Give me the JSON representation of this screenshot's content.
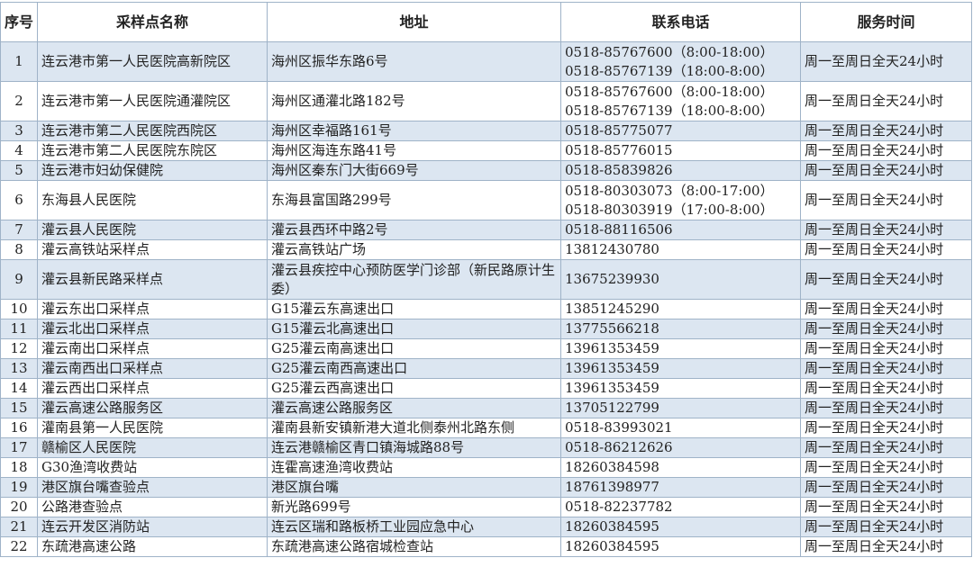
{
  "headers": [
    "序号",
    "采样点名称",
    "地址",
    "联系电话",
    "服务时间"
  ],
  "rows": [
    {
      "no": "1",
      "name": "连云港市第一人民医院高新院区",
      "address": "海州区振华东路6号",
      "phones": [
        "0518-85767600（8:00-18:00）",
        "0518-85767139（18:00-8:00）"
      ],
      "hours": "周一至周日全天24小时"
    },
    {
      "no": "2",
      "name": "连云港市第一人民医院通灌院区",
      "address": "海州区通灌北路182号",
      "phones": [
        "0518-85767600（8:00-18:00）",
        "0518-85767139（18:00-8:00）"
      ],
      "hours": "周一至周日全天24小时"
    },
    {
      "no": "3",
      "name": "连云港市第二人民医院西院区",
      "address": "海州区幸福路161号",
      "phones": [
        "0518-85775077"
      ],
      "hours": "周一至周日全天24小时"
    },
    {
      "no": "4",
      "name": "连云港市第二人民医院东院区",
      "address": "海州区海连东路41号",
      "phones": [
        "0518-85776015"
      ],
      "hours": "周一至周日全天24小时"
    },
    {
      "no": "5",
      "name": "连云港市妇幼保健院",
      "address": "海州区秦东门大街669号",
      "phones": [
        "0518-85839826"
      ],
      "hours": "周一至周日全天24小时"
    },
    {
      "no": "6",
      "name": "东海县人民医院",
      "address": "东海县富国路299号",
      "phones": [
        "0518-80303073（8:00-17:00）",
        "0518-80303919（17:00-8:00）"
      ],
      "hours": "周一至周日全天24小时"
    },
    {
      "no": "7",
      "name": "灌云县人民医院",
      "address": "灌云县西环中路2号",
      "phones": [
        "0518-88116506"
      ],
      "hours": "周一至周日全天24小时"
    },
    {
      "no": "8",
      "name": "灌云高铁站采样点",
      "address": "灌云高铁站广场",
      "phones": [
        "13812430780"
      ],
      "hours": "周一至周日全天24小时"
    },
    {
      "no": "9",
      "name": "灌云县新民路采样点",
      "address": "灌云县疾控中心预防医学门诊部（新民路原计生委）",
      "phones": [
        "13675239930"
      ],
      "hours": "周一至周日全天24小时"
    },
    {
      "no": "10",
      "name": "灌云东出口采样点",
      "address": "G15灌云东高速出口",
      "phones": [
        "13851245290"
      ],
      "hours": "周一至周日全天24小时"
    },
    {
      "no": "11",
      "name": "灌云北出口采样点",
      "address": "G15灌云北高速出口",
      "phones": [
        "13775566218"
      ],
      "hours": "周一至周日全天24小时"
    },
    {
      "no": "12",
      "name": "灌云南出口采样点",
      "address": "G25灌云南高速出口",
      "phones": [
        "13961353459"
      ],
      "hours": "周一至周日全天24小时"
    },
    {
      "no": "13",
      "name": "灌云南西出口采样点",
      "address": "G25灌云南西高速出口",
      "phones": [
        "13961353459"
      ],
      "hours": "周一至周日全天24小时"
    },
    {
      "no": "14",
      "name": "灌云西出口采样点",
      "address": "G25灌云西高速出口",
      "phones": [
        "13961353459"
      ],
      "hours": "周一至周日全天24小时"
    },
    {
      "no": "15",
      "name": "灌云高速公路服务区",
      "address": "灌云高速公路服务区",
      "phones": [
        "13705122799"
      ],
      "hours": "周一至周日全天24小时"
    },
    {
      "no": "16",
      "name": "灌南县第一人民医院",
      "address": "灌南县新安镇新港大道北侧泰州北路东侧",
      "phones": [
        "0518-83993021"
      ],
      "hours": "周一至周日全天24小时"
    },
    {
      "no": "17",
      "name": "赣榆区人民医院",
      "address": "连云港赣榆区青口镇海城路88号",
      "phones": [
        "0518-86212626"
      ],
      "hours": "周一至周日全天24小时"
    },
    {
      "no": "18",
      "name": "G30渔湾收费站",
      "address": "连霍高速渔湾收费站",
      "phones": [
        "18260384598"
      ],
      "hours": "周一至周日全天24小时"
    },
    {
      "no": "19",
      "name": "港区旗台嘴查验点",
      "address": "港区旗台嘴",
      "phones": [
        "18761398977"
      ],
      "hours": "周一至周日全天24小时"
    },
    {
      "no": "20",
      "name": "公路港查验点",
      "address": "新光路699号",
      "phones": [
        "0518-82237782"
      ],
      "hours": "周一至周日全天24小时"
    },
    {
      "no": "21",
      "name": "连云开发区消防站",
      "address": "连云区瑞和路板桥工业园应急中心",
      "phones": [
        "18260384595"
      ],
      "hours": "周一至周日全天24小时"
    },
    {
      "no": "22",
      "name": "东疏港高速公路",
      "address": "东疏港高速公路宿城检查站",
      "phones": [
        "18260384595"
      ],
      "hours": "周一至周日全天24小时"
    }
  ],
  "colors": {
    "band": "#dce6f1",
    "border": "#9fb3c8"
  }
}
